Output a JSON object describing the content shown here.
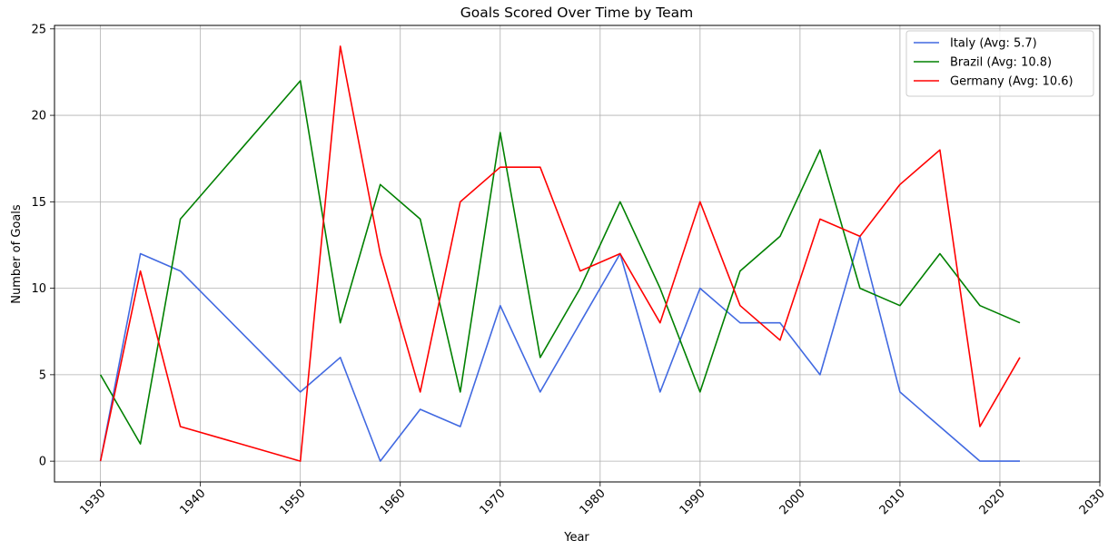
{
  "chart_data": {
    "type": "line",
    "title": "Goals Scored Over Time by Team",
    "xlabel": "Year",
    "ylabel": "Number of Goals",
    "xlim": [
      1925.4,
      2030
    ],
    "ylim": [
      -1.2,
      25.2
    ],
    "xticks": [
      1930,
      1940,
      1950,
      1960,
      1970,
      1980,
      1990,
      2000,
      2010,
      2020,
      2030
    ],
    "yticks": [
      0,
      5,
      10,
      15,
      20,
      25
    ],
    "grid": true,
    "legend_position": "top-right",
    "x": [
      1930,
      1934,
      1938,
      1950,
      1954,
      1958,
      1962,
      1966,
      1970,
      1974,
      1978,
      1982,
      1986,
      1990,
      1994,
      1998,
      2002,
      2006,
      2010,
      2014,
      2018,
      2022
    ],
    "series": [
      {
        "name": "Italy (Avg: 5.7)",
        "color": "#4169e1",
        "values": [
          0,
          12,
          11,
          4,
          6,
          0,
          3,
          2,
          9,
          4,
          8,
          12,
          4,
          10,
          8,
          8,
          5,
          13,
          4,
          2,
          0,
          0
        ]
      },
      {
        "name": "Brazil (Avg: 10.8)",
        "color": "#008000",
        "values": [
          5,
          1,
          14,
          22,
          8,
          16,
          14,
          4,
          19,
          6,
          10,
          15,
          10,
          4,
          11,
          13,
          18,
          10,
          9,
          12,
          9,
          8
        ]
      },
      {
        "name": "Germany (Avg: 10.6)",
        "color": "#ff0000",
        "values": [
          0,
          11,
          2,
          0,
          24,
          12,
          4,
          15,
          17,
          17,
          11,
          12,
          8,
          15,
          9,
          7,
          14,
          13,
          16,
          18,
          2,
          6
        ]
      }
    ]
  }
}
